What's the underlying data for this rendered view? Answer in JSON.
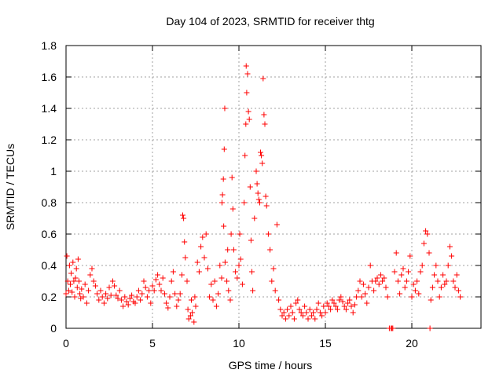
{
  "chart_data": {
    "type": "scatter",
    "title": "Day 104 of 2023, SRMTID for receiver thtg",
    "xlabel": "GPS time / hours",
    "ylabel": "SRMTID / TECUs",
    "xlim": [
      0,
      24
    ],
    "ylim": [
      0,
      1.8
    ],
    "xticks": [
      0,
      5,
      10,
      15,
      20
    ],
    "xtick_labels": [
      "0",
      "5",
      "10",
      "15",
      "20"
    ],
    "yticks": [
      0,
      0.2,
      0.4,
      0.6,
      0.8,
      1.0,
      1.2,
      1.4,
      1.6,
      1.8
    ],
    "ytick_labels": [
      "0",
      "0.2",
      "0.4",
      "0.6",
      "0.8",
      "1",
      "1.2",
      "1.4",
      "1.6",
      "1.8"
    ],
    "grid": true,
    "marker": "+",
    "color": "#ff0000",
    "series": [
      {
        "name": "SRMTID",
        "points": [
          [
            0.0,
            0.22
          ],
          [
            0.05,
            0.46
          ],
          [
            0.1,
            0.3
          ],
          [
            0.15,
            0.24
          ],
          [
            0.2,
            0.4
          ],
          [
            0.25,
            0.28
          ],
          [
            0.3,
            0.35
          ],
          [
            0.35,
            0.23
          ],
          [
            0.4,
            0.42
          ],
          [
            0.45,
            0.3
          ],
          [
            0.5,
            0.2
          ],
          [
            0.55,
            0.32
          ],
          [
            0.6,
            0.38
          ],
          [
            0.65,
            0.26
          ],
          [
            0.7,
            0.44
          ],
          [
            0.75,
            0.3
          ],
          [
            0.8,
            0.22
          ],
          [
            0.85,
            0.19
          ],
          [
            0.9,
            0.25
          ],
          [
            1.0,
            0.2
          ],
          [
            1.1,
            0.28
          ],
          [
            1.2,
            0.16
          ],
          [
            1.3,
            0.24
          ],
          [
            1.4,
            0.34
          ],
          [
            1.5,
            0.38
          ],
          [
            1.6,
            0.3
          ],
          [
            1.7,
            0.27
          ],
          [
            1.8,
            0.22
          ],
          [
            1.9,
            0.18
          ],
          [
            2.0,
            0.24
          ],
          [
            2.1,
            0.2
          ],
          [
            2.2,
            0.16
          ],
          [
            2.3,
            0.22
          ],
          [
            2.4,
            0.19
          ],
          [
            2.5,
            0.26
          ],
          [
            2.6,
            0.21
          ],
          [
            2.7,
            0.3
          ],
          [
            2.8,
            0.27
          ],
          [
            2.9,
            0.21
          ],
          [
            3.0,
            0.19
          ],
          [
            3.1,
            0.24
          ],
          [
            3.2,
            0.18
          ],
          [
            3.3,
            0.14
          ],
          [
            3.4,
            0.2
          ],
          [
            3.5,
            0.17
          ],
          [
            3.6,
            0.15
          ],
          [
            3.7,
            0.19
          ],
          [
            3.8,
            0.21
          ],
          [
            3.9,
            0.17
          ],
          [
            4.0,
            0.16
          ],
          [
            4.1,
            0.2
          ],
          [
            4.2,
            0.24
          ],
          [
            4.3,
            0.18
          ],
          [
            4.4,
            0.22
          ],
          [
            4.5,
            0.3
          ],
          [
            4.6,
            0.26
          ],
          [
            4.7,
            0.2
          ],
          [
            4.8,
            0.24
          ],
          [
            4.9,
            0.16
          ],
          [
            5.0,
            0.27
          ],
          [
            5.1,
            0.24
          ],
          [
            5.2,
            0.31
          ],
          [
            5.3,
            0.34
          ],
          [
            5.4,
            0.28
          ],
          [
            5.5,
            0.24
          ],
          [
            5.6,
            0.32
          ],
          [
            5.7,
            0.22
          ],
          [
            5.8,
            0.16
          ],
          [
            5.9,
            0.13
          ],
          [
            6.0,
            0.2
          ],
          [
            6.1,
            0.3
          ],
          [
            6.2,
            0.36
          ],
          [
            6.3,
            0.22
          ],
          [
            6.4,
            0.14
          ],
          [
            6.5,
            0.18
          ],
          [
            6.6,
            0.22
          ],
          [
            6.7,
            0.34
          ],
          [
            6.75,
            0.72
          ],
          [
            6.8,
            0.7
          ],
          [
            6.85,
            0.55
          ],
          [
            6.9,
            0.45
          ],
          [
            7.0,
            0.3
          ],
          [
            7.05,
            0.12
          ],
          [
            7.1,
            0.06
          ],
          [
            7.2,
            0.08
          ],
          [
            7.25,
            0.18
          ],
          [
            7.3,
            0.1
          ],
          [
            7.4,
            0.04
          ],
          [
            7.45,
            0.2
          ],
          [
            7.5,
            0.14
          ],
          [
            7.6,
            0.42
          ],
          [
            7.7,
            0.36
          ],
          [
            7.8,
            0.52
          ],
          [
            7.9,
            0.58
          ],
          [
            8.0,
            0.45
          ],
          [
            8.1,
            0.6
          ],
          [
            8.2,
            0.38
          ],
          [
            8.3,
            0.2
          ],
          [
            8.4,
            0.28
          ],
          [
            8.5,
            0.18
          ],
          [
            8.6,
            0.3
          ],
          [
            8.7,
            0.14
          ],
          [
            8.8,
            0.22
          ],
          [
            8.9,
            0.4
          ],
          [
            9.0,
            0.32
          ],
          [
            9.02,
            0.8
          ],
          [
            9.05,
            0.85
          ],
          [
            9.1,
            0.95
          ],
          [
            9.12,
            0.65
          ],
          [
            9.15,
            1.14
          ],
          [
            9.18,
            1.4
          ],
          [
            9.2,
            0.42
          ],
          [
            9.3,
            0.3
          ],
          [
            9.35,
            0.5
          ],
          [
            9.4,
            0.24
          ],
          [
            9.5,
            0.18
          ],
          [
            9.55,
            0.6
          ],
          [
            9.6,
            0.96
          ],
          [
            9.65,
            0.76
          ],
          [
            9.7,
            0.5
          ],
          [
            9.8,
            0.36
          ],
          [
            9.9,
            0.32
          ],
          [
            10.0,
            0.4
          ],
          [
            10.05,
            0.6
          ],
          [
            10.1,
            0.44
          ],
          [
            10.2,
            0.28
          ],
          [
            10.3,
            0.8
          ],
          [
            10.35,
            1.1
          ],
          [
            10.4,
            1.3
          ],
          [
            10.42,
            1.67
          ],
          [
            10.45,
            1.5
          ],
          [
            10.5,
            1.62
          ],
          [
            10.55,
            1.38
          ],
          [
            10.6,
            1.33
          ],
          [
            10.65,
            0.9
          ],
          [
            10.7,
            0.56
          ],
          [
            10.75,
            0.36
          ],
          [
            10.8,
            0.24
          ],
          [
            10.9,
            0.7
          ],
          [
            11.0,
            1.0
          ],
          [
            11.05,
            0.92
          ],
          [
            11.1,
            0.86
          ],
          [
            11.15,
            0.82
          ],
          [
            11.2,
            0.8
          ],
          [
            11.25,
            1.12
          ],
          [
            11.3,
            1.1
          ],
          [
            11.35,
            1.05
          ],
          [
            11.4,
            1.59
          ],
          [
            11.45,
            1.36
          ],
          [
            11.5,
            1.3
          ],
          [
            11.55,
            0.84
          ],
          [
            11.6,
            0.78
          ],
          [
            11.7,
            0.6
          ],
          [
            11.8,
            0.5
          ],
          [
            11.9,
            0.3
          ],
          [
            12.0,
            0.38
          ],
          [
            12.1,
            0.24
          ],
          [
            12.2,
            0.66
          ],
          [
            12.3,
            0.18
          ],
          [
            12.4,
            0.12
          ],
          [
            12.5,
            0.08
          ],
          [
            12.6,
            0.1
          ],
          [
            12.7,
            0.06
          ],
          [
            12.8,
            0.12
          ],
          [
            12.9,
            0.08
          ],
          [
            13.0,
            0.14
          ],
          [
            13.1,
            0.1
          ],
          [
            13.2,
            0.06
          ],
          [
            13.3,
            0.16
          ],
          [
            13.4,
            0.18
          ],
          [
            13.5,
            0.12
          ],
          [
            13.6,
            0.1
          ],
          [
            13.7,
            0.08
          ],
          [
            13.8,
            0.14
          ],
          [
            13.9,
            0.1
          ],
          [
            14.0,
            0.06
          ],
          [
            14.1,
            0.12
          ],
          [
            14.2,
            0.08
          ],
          [
            14.3,
            0.1
          ],
          [
            14.4,
            0.06
          ],
          [
            14.5,
            0.12
          ],
          [
            14.6,
            0.16
          ],
          [
            14.7,
            0.1
          ],
          [
            14.8,
            0.08
          ],
          [
            14.9,
            0.14
          ],
          [
            15.0,
            0.1
          ],
          [
            15.1,
            0.16
          ],
          [
            15.2,
            0.14
          ],
          [
            15.3,
            0.12
          ],
          [
            15.4,
            0.18
          ],
          [
            15.5,
            0.16
          ],
          [
            15.6,
            0.14
          ],
          [
            15.7,
            0.12
          ],
          [
            15.8,
            0.18
          ],
          [
            15.9,
            0.2
          ],
          [
            16.0,
            0.17
          ],
          [
            16.1,
            0.14
          ],
          [
            16.2,
            0.12
          ],
          [
            16.3,
            0.16
          ],
          [
            16.4,
            0.18
          ],
          [
            16.5,
            0.14
          ],
          [
            16.6,
            0.1
          ],
          [
            16.7,
            0.15
          ],
          [
            16.8,
            0.2
          ],
          [
            16.9,
            0.24
          ],
          [
            17.0,
            0.3
          ],
          [
            17.1,
            0.2
          ],
          [
            17.2,
            0.28
          ],
          [
            17.3,
            0.22
          ],
          [
            17.4,
            0.16
          ],
          [
            17.5,
            0.26
          ],
          [
            17.6,
            0.4
          ],
          [
            17.7,
            0.3
          ],
          [
            17.8,
            0.24
          ],
          [
            17.9,
            0.3
          ],
          [
            18.0,
            0.32
          ],
          [
            18.1,
            0.28
          ],
          [
            18.2,
            0.34
          ],
          [
            18.3,
            0.3
          ],
          [
            18.4,
            0.32
          ],
          [
            18.5,
            0.26
          ],
          [
            18.6,
            0.2
          ],
          [
            18.7,
            0.0
          ],
          [
            18.8,
            0.0
          ],
          [
            18.85,
            0.0
          ],
          [
            18.9,
            0.0
          ],
          [
            19.0,
            0.36
          ],
          [
            19.1,
            0.48
          ],
          [
            19.2,
            0.3
          ],
          [
            19.3,
            0.22
          ],
          [
            19.4,
            0.34
          ],
          [
            19.5,
            0.38
          ],
          [
            19.6,
            0.26
          ],
          [
            19.7,
            0.3
          ],
          [
            19.8,
            0.36
          ],
          [
            19.9,
            0.46
          ],
          [
            20.0,
            0.2
          ],
          [
            20.1,
            0.28
          ],
          [
            20.2,
            0.24
          ],
          [
            20.3,
            0.3
          ],
          [
            20.4,
            0.22
          ],
          [
            20.5,
            0.36
          ],
          [
            20.6,
            0.4
          ],
          [
            20.7,
            0.54
          ],
          [
            20.8,
            0.62
          ],
          [
            20.9,
            0.6
          ],
          [
            21.0,
            0.48
          ],
          [
            21.05,
            0.0
          ],
          [
            21.1,
            0.18
          ],
          [
            21.2,
            0.26
          ],
          [
            21.3,
            0.34
          ],
          [
            21.4,
            0.4
          ],
          [
            21.5,
            0.3
          ],
          [
            21.6,
            0.2
          ],
          [
            21.7,
            0.26
          ],
          [
            21.8,
            0.34
          ],
          [
            21.9,
            0.28
          ],
          [
            22.0,
            0.3
          ],
          [
            22.1,
            0.4
          ],
          [
            22.2,
            0.52
          ],
          [
            22.3,
            0.46
          ],
          [
            22.4,
            0.3
          ],
          [
            22.5,
            0.26
          ],
          [
            22.6,
            0.34
          ],
          [
            22.7,
            0.24
          ],
          [
            22.8,
            0.2
          ]
        ]
      }
    ]
  }
}
